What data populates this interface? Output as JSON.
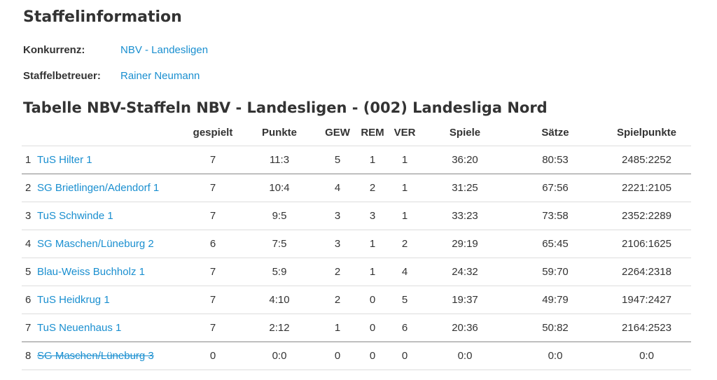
{
  "section_title": "Staffelinformation",
  "konkurrenz": {
    "label": "Konkurrenz:",
    "value": "NBV - Landesligen"
  },
  "staffelbetreuer": {
    "label": "Staffelbetreuer:",
    "value": "Rainer Neumann"
  },
  "table_title": "Tabelle NBV-Staffeln NBV - Landesligen - (002) Landesliga Nord",
  "columns": {
    "gespielt": "gespielt",
    "punkte": "Punkte",
    "gew": "GEW",
    "rem": "REM",
    "ver": "VER",
    "spiele": "Spiele",
    "saetze": "Sätze",
    "spielpunkte": "Spielpunkte"
  },
  "rows": [
    {
      "rank": "1",
      "team": "TuS Hilter 1",
      "gespielt": "7",
      "punkte": "11:3",
      "gew": "5",
      "rem": "1",
      "ver": "1",
      "spiele": "36:20",
      "saetze": "80:53",
      "spielpunkte": "2485:2252"
    },
    {
      "rank": "2",
      "team": "SG Brietlingen/Adendorf 1",
      "gespielt": "7",
      "punkte": "10:4",
      "gew": "4",
      "rem": "2",
      "ver": "1",
      "spiele": "31:25",
      "saetze": "67:56",
      "spielpunkte": "2221:2105"
    },
    {
      "rank": "3",
      "team": "TuS Schwinde 1",
      "gespielt": "7",
      "punkte": "9:5",
      "gew": "3",
      "rem": "3",
      "ver": "1",
      "spiele": "33:23",
      "saetze": "73:58",
      "spielpunkte": "2352:2289"
    },
    {
      "rank": "4",
      "team": "SG Maschen/Lüneburg 2",
      "gespielt": "6",
      "punkte": "7:5",
      "gew": "3",
      "rem": "1",
      "ver": "2",
      "spiele": "29:19",
      "saetze": "65:45",
      "spielpunkte": "2106:1625"
    },
    {
      "rank": "5",
      "team": "Blau-Weiss Buchholz 1",
      "gespielt": "7",
      "punkte": "5:9",
      "gew": "2",
      "rem": "1",
      "ver": "4",
      "spiele": "24:32",
      "saetze": "59:70",
      "spielpunkte": "2264:2318"
    },
    {
      "rank": "6",
      "team": "TuS Heidkrug 1",
      "gespielt": "7",
      "punkte": "4:10",
      "gew": "2",
      "rem": "0",
      "ver": "5",
      "spiele": "19:37",
      "saetze": "49:79",
      "spielpunkte": "1947:2427"
    },
    {
      "rank": "7",
      "team": "TuS Neuenhaus 1",
      "gespielt": "7",
      "punkte": "2:12",
      "gew": "1",
      "rem": "0",
      "ver": "6",
      "spiele": "20:36",
      "saetze": "50:82",
      "spielpunkte": "2164:2523"
    },
    {
      "rank": "8",
      "team": "SG Maschen/Lüneburg 3",
      "gespielt": "0",
      "punkte": "0:0",
      "gew": "0",
      "rem": "0",
      "ver": "0",
      "spiele": "0:0",
      "saetze": "0:0",
      "spielpunkte": "0:0"
    }
  ],
  "colors": {
    "link": "#1a8fd0",
    "text": "#333333",
    "divider": "#dddddd"
  }
}
